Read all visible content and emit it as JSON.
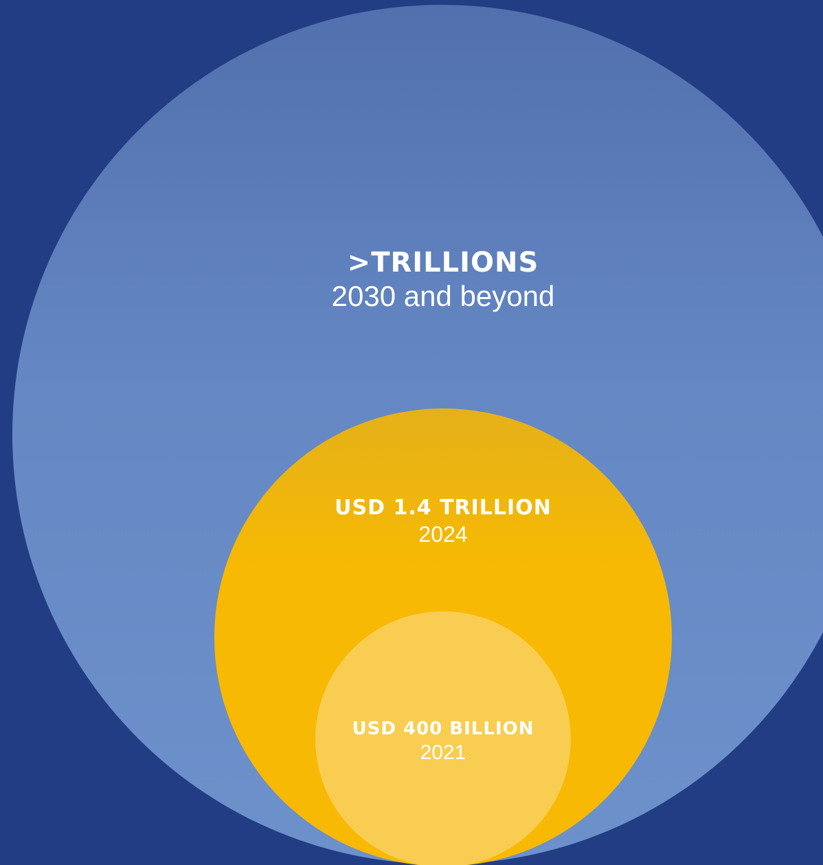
{
  "colors": {
    "background": "#233d85",
    "outer_circle": "#6588c4",
    "middle_circle": "#f7b903",
    "inner_circle": "#f9cd52",
    "text": "#ffffff"
  },
  "circles": [
    {
      "value": ">Trillions",
      "year": "2030 and beyond"
    },
    {
      "value": "USD 1.4 trillion",
      "year": "2024"
    },
    {
      "value": "USD 400 billion",
      "year": "2021"
    }
  ]
}
